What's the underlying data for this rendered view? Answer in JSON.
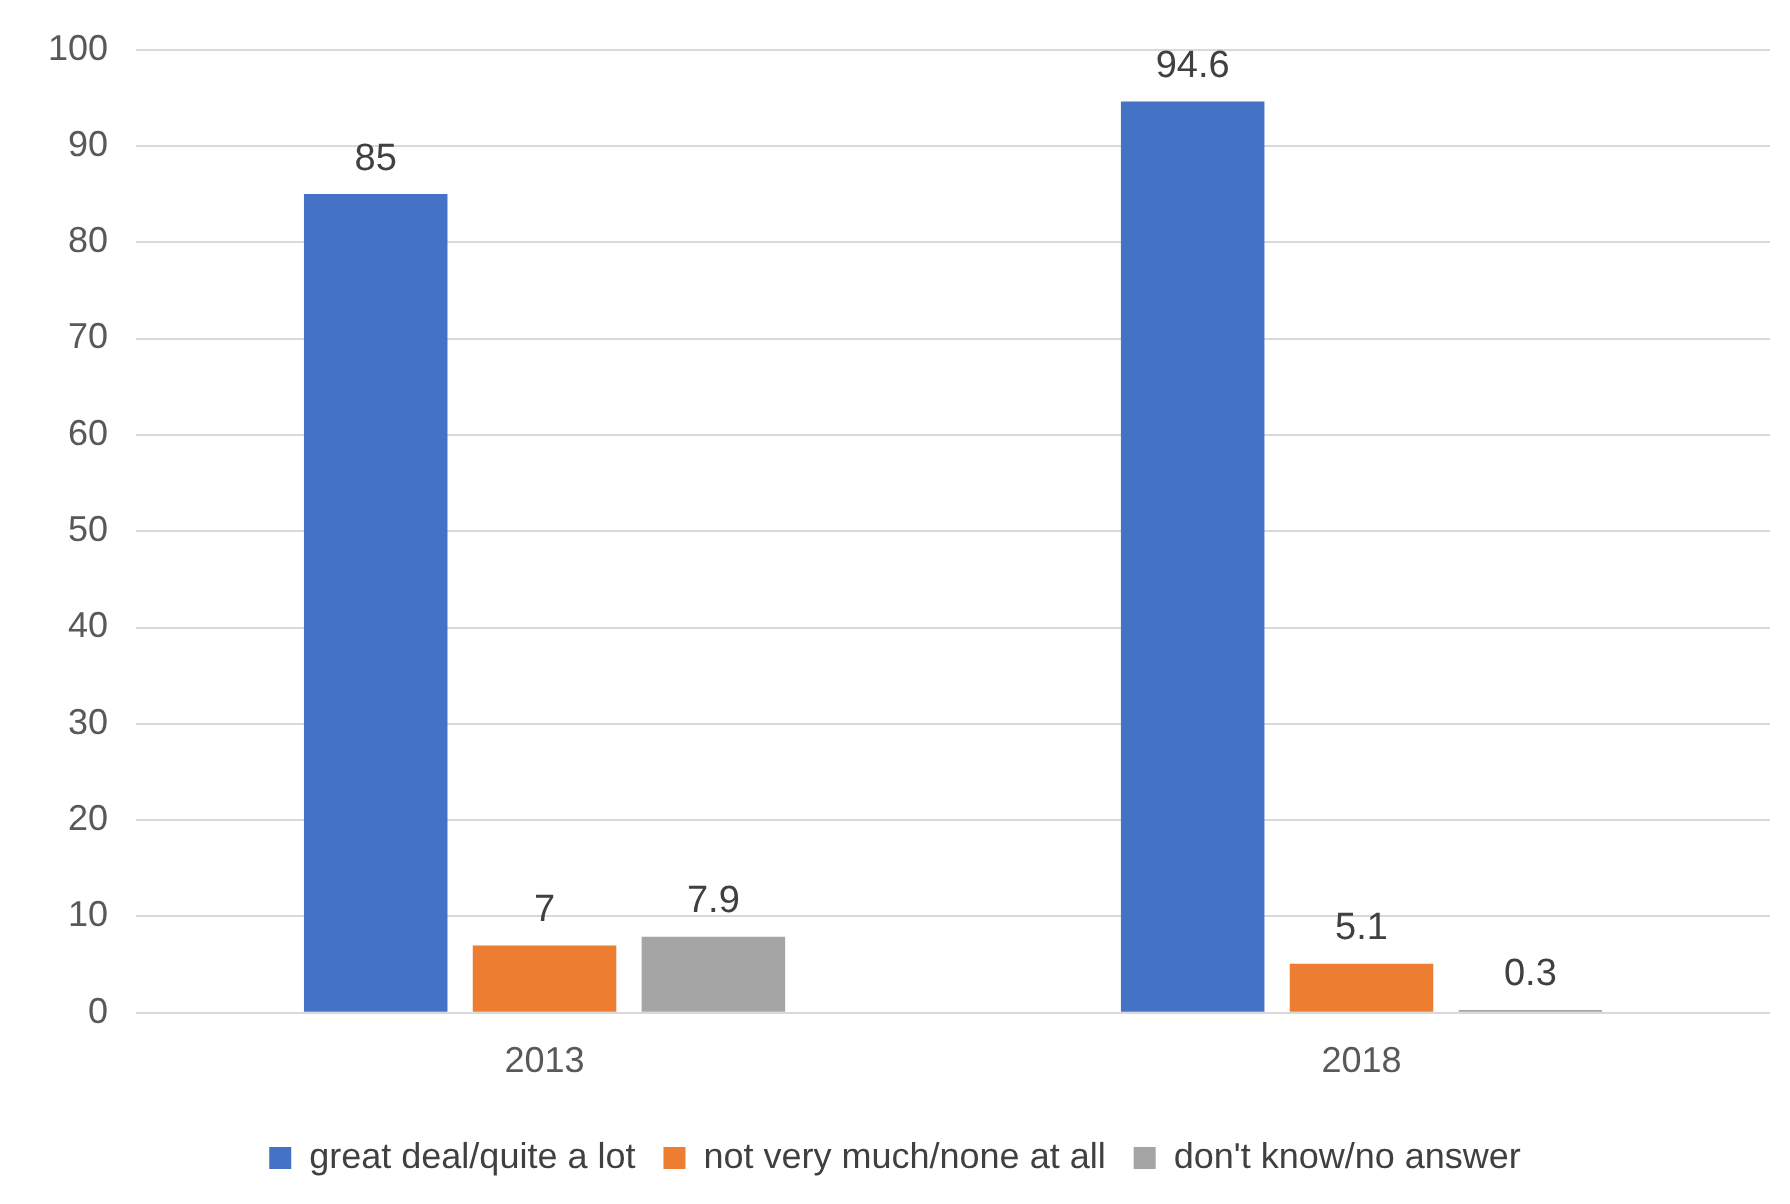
{
  "chart_data": {
    "type": "bar",
    "categories": [
      "2013",
      "2018"
    ],
    "series": [
      {
        "name": "great deal/quite a lot",
        "color": "#4472c4",
        "values": [
          85,
          94.6
        ]
      },
      {
        "name": "not very much/none at all",
        "color": "#ed7d31",
        "values": [
          7,
          5.1
        ]
      },
      {
        "name": "don't know/no answer",
        "color": "#a5a5a5",
        "values": [
          7.9,
          0.3
        ]
      }
    ],
    "ylim": [
      0,
      100
    ],
    "yticks": [
      0,
      10,
      20,
      30,
      40,
      50,
      60,
      70,
      80,
      90,
      100
    ],
    "grid": "y",
    "legend": "bottom",
    "data_labels": true
  }
}
